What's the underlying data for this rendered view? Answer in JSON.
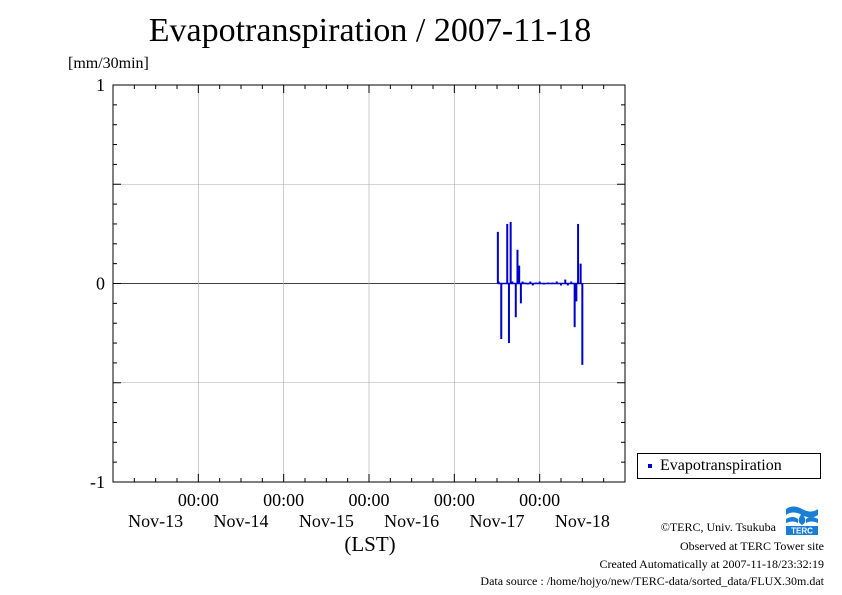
{
  "chart_data": {
    "type": "bar",
    "title": "Evapotranspiration / 2007-11-18",
    "ylabel": "[mm/30min]",
    "xlabel": "(LST)",
    "ylim": [
      -1,
      1
    ],
    "yticks": [
      {
        "value": 1,
        "label": "1"
      },
      {
        "value": 0,
        "label": "0"
      },
      {
        "value": -1,
        "label": "-1"
      }
    ],
    "xlim_days": [
      0,
      6
    ],
    "xticks": [
      {
        "day": 1,
        "time": "00:00",
        "date": "Nov-13"
      },
      {
        "day": 2,
        "time": "00:00",
        "date": "Nov-14"
      },
      {
        "day": 3,
        "time": "00:00",
        "date": "Nov-15"
      },
      {
        "day": 4,
        "time": "00:00",
        "date": "Nov-16"
      },
      {
        "day": 5,
        "time": "00:00",
        "date": "Nov-17"
      }
    ],
    "tick_dates": [
      "Nov-13",
      "Nov-14",
      "Nov-15",
      "Nov-16",
      "Nov-17",
      "Nov-18"
    ],
    "grid": true,
    "legend_position": "bottom-right",
    "series": [
      {
        "name": "Evapotranspiration",
        "color": "#0000cc",
        "points": [
          {
            "t": 4.51,
            "v": 0.26
          },
          {
            "t": 4.52,
            "v": 0.01
          },
          {
            "t": 4.55,
            "v": -0.28
          },
          {
            "t": 4.62,
            "v": 0.3
          },
          {
            "t": 4.64,
            "v": -0.3
          },
          {
            "t": 4.66,
            "v": 0.31
          },
          {
            "t": 4.68,
            "v": 0.01
          },
          {
            "t": 4.72,
            "v": -0.17
          },
          {
            "t": 4.74,
            "v": 0.17
          },
          {
            "t": 4.76,
            "v": 0.09
          },
          {
            "t": 4.78,
            "v": -0.1
          },
          {
            "t": 4.8,
            "v": 0.01
          },
          {
            "t": 4.83,
            "v": 0.005
          },
          {
            "t": 4.86,
            "v": -0.005
          },
          {
            "t": 4.89,
            "v": 0.01
          },
          {
            "t": 4.92,
            "v": -0.01
          },
          {
            "t": 4.96,
            "v": 0.005
          },
          {
            "t": 5.0,
            "v": 0.01
          },
          {
            "t": 5.05,
            "v": -0.005
          },
          {
            "t": 5.1,
            "v": 0.005
          },
          {
            "t": 5.15,
            "v": 0.005
          },
          {
            "t": 5.2,
            "v": 0.01
          },
          {
            "t": 5.25,
            "v": -0.01
          },
          {
            "t": 5.3,
            "v": 0.02
          },
          {
            "t": 5.33,
            "v": -0.01
          },
          {
            "t": 5.37,
            "v": 0.01
          },
          {
            "t": 5.41,
            "v": -0.22
          },
          {
            "t": 5.43,
            "v": -0.09
          },
          {
            "t": 5.45,
            "v": 0.3
          },
          {
            "t": 5.48,
            "v": 0.1
          },
          {
            "t": 5.5,
            "v": -0.41
          }
        ]
      }
    ]
  },
  "legend": {
    "label": "Evapotranspiration"
  },
  "credits": {
    "copyright": "©TERC, Univ. Tsukuba",
    "site": "Observed at TERC Tower site",
    "created": "Created Automatically at 2007-11-18/23:32:19",
    "source": "Data source : /home/hojyo/new/TERC-data/sorted_data/FLUX.30m.dat"
  },
  "logo": {
    "text": "TERC",
    "color": "#1a7fd4"
  }
}
